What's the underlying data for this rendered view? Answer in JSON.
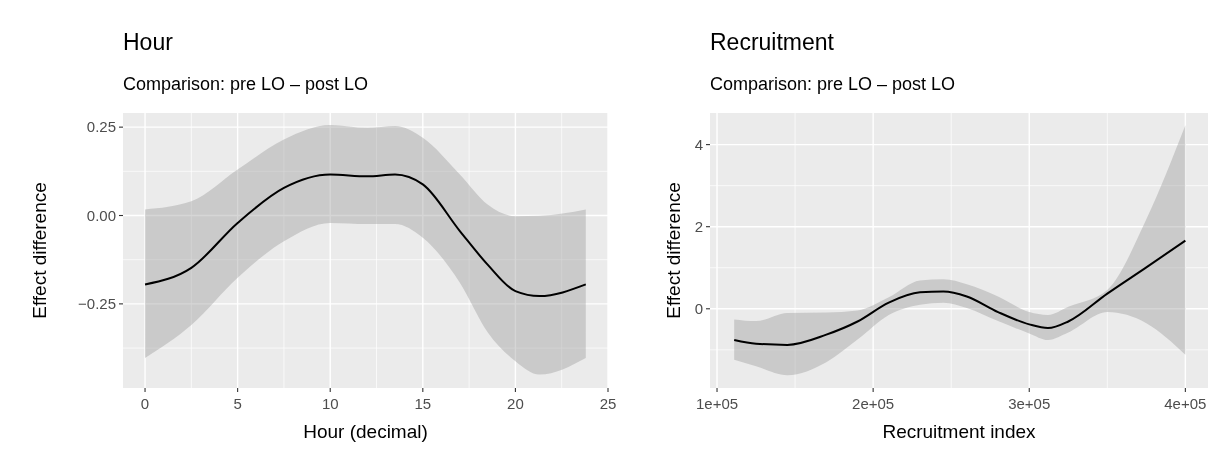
{
  "chart_data": [
    {
      "type": "line",
      "title": "Hour",
      "subtitle": "Comparison: pre LO – post LO",
      "xlabel": "Hour (decimal)",
      "ylabel": "Effect difference",
      "xlim": [
        -1.19,
        25
      ],
      "ylim": [
        -0.488,
        0.29
      ],
      "xticks": [
        0,
        5,
        10,
        15,
        20,
        25
      ],
      "yticks": [
        {
          "value": 0.25,
          "label": "0.25"
        },
        {
          "value": 0,
          "label": "0.00"
        },
        {
          "value": -0.25,
          "label": "−0.25"
        }
      ],
      "grid": true,
      "series": [
        {
          "color": "#000000",
          "x": [
            0,
            2.5,
            5,
            7.5,
            10,
            12,
            13.5,
            15,
            17,
            18.5,
            20,
            21.3,
            23.8
          ],
          "values": [
            -0.195,
            -0.148,
            -0.021,
            0.078,
            0.116,
            0.111,
            0.116,
            0.088,
            -0.044,
            -0.139,
            -0.214,
            -0.228,
            -0.195
          ],
          "lower": [
            -0.403,
            -0.31,
            -0.176,
            -0.073,
            -0.021,
            -0.024,
            -0.024,
            -0.063,
            -0.19,
            -0.33,
            -0.412,
            -0.45,
            -0.403
          ],
          "upper": [
            0.017,
            0.04,
            0.13,
            0.215,
            0.256,
            0.248,
            0.253,
            0.22,
            0.116,
            0.031,
            -0.002,
            -0.001,
            0.017
          ]
        }
      ]
    },
    {
      "type": "line",
      "title": "Recruitment",
      "subtitle": "Comparison: pre LO – post LO",
      "xlabel": "Recruitment index",
      "ylabel": "Effect difference",
      "xlim": [
        95500,
        414500
      ],
      "ylim": [
        -1.93,
        4.77
      ],
      "xticks": [
        {
          "value": 100000,
          "label": "1e+05"
        },
        {
          "value": 200000,
          "label": "2e+05"
        },
        {
          "value": 300000,
          "label": "3e+05"
        },
        {
          "value": 400000,
          "label": "4e+05"
        }
      ],
      "yticks": [
        0,
        2,
        4
      ],
      "grid": true,
      "series": [
        {
          "color": "#000000",
          "x": [
            111000,
            125000,
            145000,
            170000,
            190000,
            210000,
            230000,
            245000,
            260000,
            280000,
            300000,
            312000,
            325000,
            350000,
            375000,
            400000
          ],
          "values": [
            -0.76,
            -0.85,
            -0.88,
            -0.63,
            -0.31,
            0.15,
            0.4,
            0.42,
            0.3,
            -0.08,
            -0.38,
            -0.47,
            -0.31,
            0.37,
            1.01,
            1.66
          ],
          "lower": [
            -1.24,
            -1.4,
            -1.62,
            -1.3,
            -0.75,
            -0.15,
            0.1,
            0.15,
            0.02,
            -0.3,
            -0.6,
            -0.76,
            -0.58,
            -0.08,
            -0.35,
            -1.12
          ],
          "upper": [
            -0.26,
            -0.3,
            -0.1,
            -0.09,
            -0.04,
            0.28,
            0.69,
            0.72,
            0.6,
            0.3,
            -0.08,
            -0.15,
            0.05,
            0.46,
            2.18,
            4.47
          ]
        }
      ]
    }
  ]
}
